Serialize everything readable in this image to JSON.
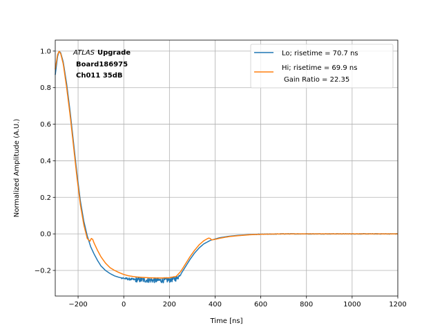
{
  "chart_data": {
    "type": "line",
    "xlabel": "Time [ns]",
    "ylabel": "Normalized Amplitude (A.U.)",
    "xlim": [
      -300,
      1200
    ],
    "ylim": [
      -0.34,
      1.06
    ],
    "xticks": [
      -200,
      0,
      200,
      400,
      600,
      800,
      1000,
      1200
    ],
    "yticks": [
      -0.2,
      0.0,
      0.2,
      0.4,
      0.6,
      0.8,
      1.0
    ],
    "xtick_labels": [
      "−200",
      "0",
      "200",
      "400",
      "600",
      "800",
      "1000",
      "1200"
    ],
    "ytick_labels": [
      "−0.2",
      "0.0",
      "0.2",
      "0.4",
      "0.6",
      "0.8",
      "1.0"
    ],
    "grid": true,
    "legend_position": "top-right",
    "annotation": {
      "line1_italic": "ATLAS",
      "line1_bold": "Upgrade",
      "line2": "Board186975",
      "line3": "Ch011 35dB"
    },
    "series": [
      {
        "name": "Lo; risetime = 70.7 ns",
        "color": "#1f77b4",
        "noise": true,
        "x": [
          -300,
          -290,
          -283,
          -276,
          -265,
          -250,
          -235,
          -220,
          -205,
          -190,
          -175,
          -160,
          -145,
          -130,
          -115,
          -100,
          -80,
          -60,
          -40,
          -20,
          0,
          20,
          50,
          80,
          110,
          140,
          170,
          200,
          230,
          250,
          270,
          290,
          310,
          330,
          350,
          380,
          420,
          460,
          500,
          550,
          600,
          650,
          700,
          800,
          900,
          1000,
          1100,
          1200
        ],
        "y": [
          0.87,
          0.97,
          1.0,
          0.99,
          0.94,
          0.82,
          0.67,
          0.5,
          0.33,
          0.18,
          0.07,
          -0.01,
          -0.07,
          -0.11,
          -0.145,
          -0.175,
          -0.2,
          -0.217,
          -0.23,
          -0.238,
          -0.243,
          -0.247,
          -0.25,
          -0.252,
          -0.253,
          -0.254,
          -0.254,
          -0.252,
          -0.245,
          -0.22,
          -0.18,
          -0.14,
          -0.105,
          -0.077,
          -0.055,
          -0.035,
          -0.021,
          -0.013,
          -0.008,
          -0.004,
          -0.002,
          -0.001,
          0.0,
          0.0,
          0.0,
          0.0,
          0.0,
          0.0
        ]
      },
      {
        "name": "Hi; risetime = 69.9 ns",
        "name_line2": "Gain Ratio = 22.35",
        "color": "#ff7f0e",
        "noise": false,
        "x": [
          -300,
          -290,
          -283,
          -276,
          -265,
          -250,
          -235,
          -220,
          -205,
          -190,
          -175,
          -160,
          -148,
          -142,
          -136,
          -130,
          -115,
          -100,
          -80,
          -60,
          -40,
          -20,
          0,
          20,
          50,
          80,
          110,
          140,
          170,
          200,
          230,
          250,
          270,
          290,
          310,
          330,
          350,
          365,
          372,
          378,
          385,
          400,
          420,
          460,
          500,
          550,
          600,
          650,
          700,
          800,
          900,
          1000,
          1100,
          1200
        ],
        "y": [
          0.9,
          0.98,
          1.0,
          0.985,
          0.93,
          0.8,
          0.65,
          0.48,
          0.31,
          0.16,
          0.05,
          -0.025,
          -0.04,
          -0.025,
          -0.03,
          -0.05,
          -0.09,
          -0.125,
          -0.16,
          -0.185,
          -0.2,
          -0.212,
          -0.222,
          -0.229,
          -0.235,
          -0.238,
          -0.24,
          -0.241,
          -0.241,
          -0.24,
          -0.232,
          -0.205,
          -0.165,
          -0.125,
          -0.09,
          -0.06,
          -0.038,
          -0.027,
          -0.023,
          -0.025,
          -0.033,
          -0.03,
          -0.024,
          -0.015,
          -0.01,
          -0.005,
          -0.002,
          -0.001,
          0.0,
          0.0,
          0.0,
          0.0,
          0.0,
          0.0
        ]
      }
    ]
  }
}
